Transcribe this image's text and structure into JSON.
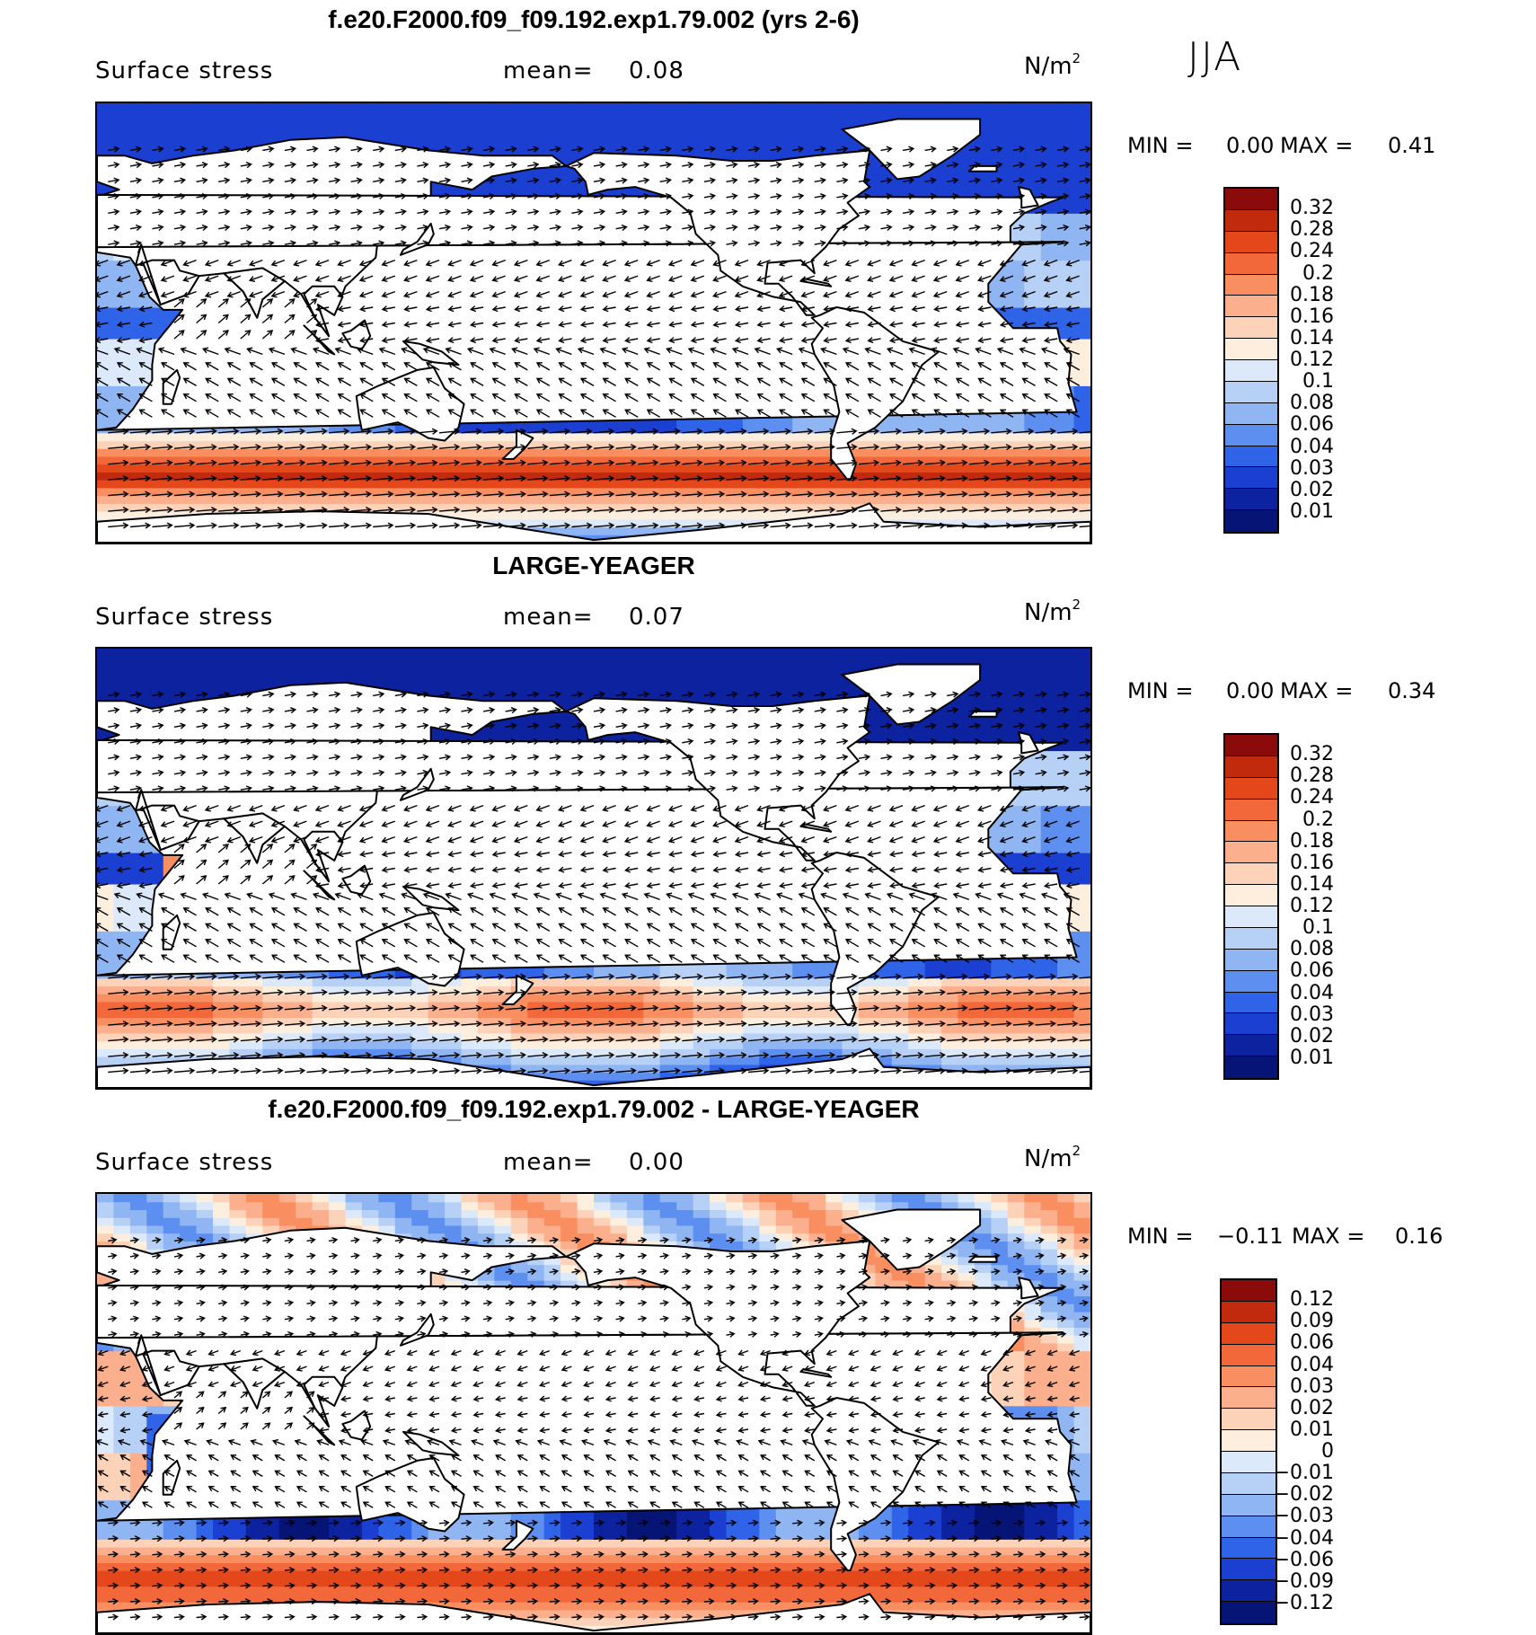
{
  "season": "JJA",
  "panels": [
    {
      "title": "f.e20.F2000.f09_f09.192.exp1.79.002 (yrs 2-6)",
      "variable": "Surface stress",
      "mean_label": "mean=",
      "mean_value": "0.08",
      "units_base": "N/m",
      "units_exp": "2",
      "min_label": "MIN =",
      "min_value": "0.00",
      "max_label": "MAX =",
      "max_value": "0.41",
      "colorbar": {
        "labels": [
          "0.32",
          "0.28",
          "0.24",
          "0.2",
          "0.18",
          "0.16",
          "0.14",
          "0.12",
          "0.1",
          "0.08",
          "0.06",
          "0.04",
          "0.03",
          "0.02",
          "0.01"
        ],
        "colors": [
          "#8b0a0a",
          "#c12a0d",
          "#e4471a",
          "#f2683a",
          "#f98e60",
          "#fbaf8c",
          "#fcd2b8",
          "#fdeedd",
          "#dbe9fb",
          "#b7d1f6",
          "#8fb5f2",
          "#5d8ff0",
          "#2f63e8",
          "#1a3fd1",
          "#0d229e",
          "#061575"
        ]
      },
      "chart_data": {
        "type": "heatmap",
        "title": "f.e20.F2000.f09_f09.192.exp1.79.002 (yrs 2-6)",
        "field": "Surface stress",
        "units": "N/m2",
        "mean": 0.08,
        "min": 0.0,
        "max": 0.41,
        "contour_levels": [
          0.01,
          0.02,
          0.03,
          0.04,
          0.06,
          0.08,
          0.1,
          0.12,
          0.14,
          0.16,
          0.18,
          0.2,
          0.24,
          0.28,
          0.32
        ],
        "vectors": "surface stress direction arrows"
      }
    },
    {
      "title": "LARGE-YEAGER",
      "variable": "Surface stress",
      "mean_label": "mean=",
      "mean_value": "0.07",
      "units_base": "N/m",
      "units_exp": "2",
      "min_label": "MIN =",
      "min_value": "0.00",
      "max_label": "MAX =",
      "max_value": "0.34",
      "colorbar": {
        "labels": [
          "0.32",
          "0.28",
          "0.24",
          "0.2",
          "0.18",
          "0.16",
          "0.14",
          "0.12",
          "0.1",
          "0.08",
          "0.06",
          "0.04",
          "0.03",
          "0.02",
          "0.01"
        ],
        "colors": [
          "#8b0a0a",
          "#c12a0d",
          "#e4471a",
          "#f2683a",
          "#f98e60",
          "#fbaf8c",
          "#fcd2b8",
          "#fdeedd",
          "#dbe9fb",
          "#b7d1f6",
          "#8fb5f2",
          "#5d8ff0",
          "#2f63e8",
          "#1a3fd1",
          "#0d229e",
          "#061575"
        ]
      },
      "chart_data": {
        "type": "heatmap",
        "title": "LARGE-YEAGER",
        "field": "Surface stress",
        "units": "N/m2",
        "mean": 0.07,
        "min": 0.0,
        "max": 0.34,
        "contour_levels": [
          0.01,
          0.02,
          0.03,
          0.04,
          0.06,
          0.08,
          0.1,
          0.12,
          0.14,
          0.16,
          0.18,
          0.2,
          0.24,
          0.28,
          0.32
        ],
        "vectors": "surface stress direction arrows"
      }
    },
    {
      "title": "f.e20.F2000.f09_f09.192.exp1.79.002 - LARGE-YEAGER",
      "variable": "Surface stress",
      "mean_label": "mean=",
      "mean_value": "0.00",
      "units_base": "N/m",
      "units_exp": "2",
      "min_label": "MIN =",
      "min_value": "−0.11",
      "max_label": "MAX =",
      "max_value": "0.16",
      "colorbar": {
        "labels": [
          "0.12",
          "0.09",
          "0.06",
          "0.04",
          "0.03",
          "0.02",
          "0.01",
          "0",
          "−0.01",
          "−0.02",
          "−0.03",
          "−0.04",
          "−0.06",
          "−0.09",
          "−0.12"
        ],
        "colors": [
          "#8b0a0a",
          "#c12a0d",
          "#e4471a",
          "#f2683a",
          "#f98e60",
          "#fbaf8c",
          "#fcd2b8",
          "#fdeedd",
          "#dbe9fb",
          "#b7d1f6",
          "#8fb5f2",
          "#5d8ff0",
          "#2f63e8",
          "#1a3fd1",
          "#0d229e",
          "#061575"
        ]
      },
      "chart_data": {
        "type": "heatmap",
        "title": "f.e20.F2000.f09_f09.192.exp1.79.002 - LARGE-YEAGER",
        "field": "Surface stress",
        "units": "N/m2",
        "mean": 0.0,
        "min": -0.11,
        "max": 0.16,
        "contour_levels": [
          -0.12,
          -0.09,
          -0.06,
          -0.04,
          -0.03,
          -0.02,
          -0.01,
          0,
          0.01,
          0.02,
          0.03,
          0.04,
          0.06,
          0.09,
          0.12
        ],
        "vectors": "surface stress difference arrows"
      }
    }
  ]
}
